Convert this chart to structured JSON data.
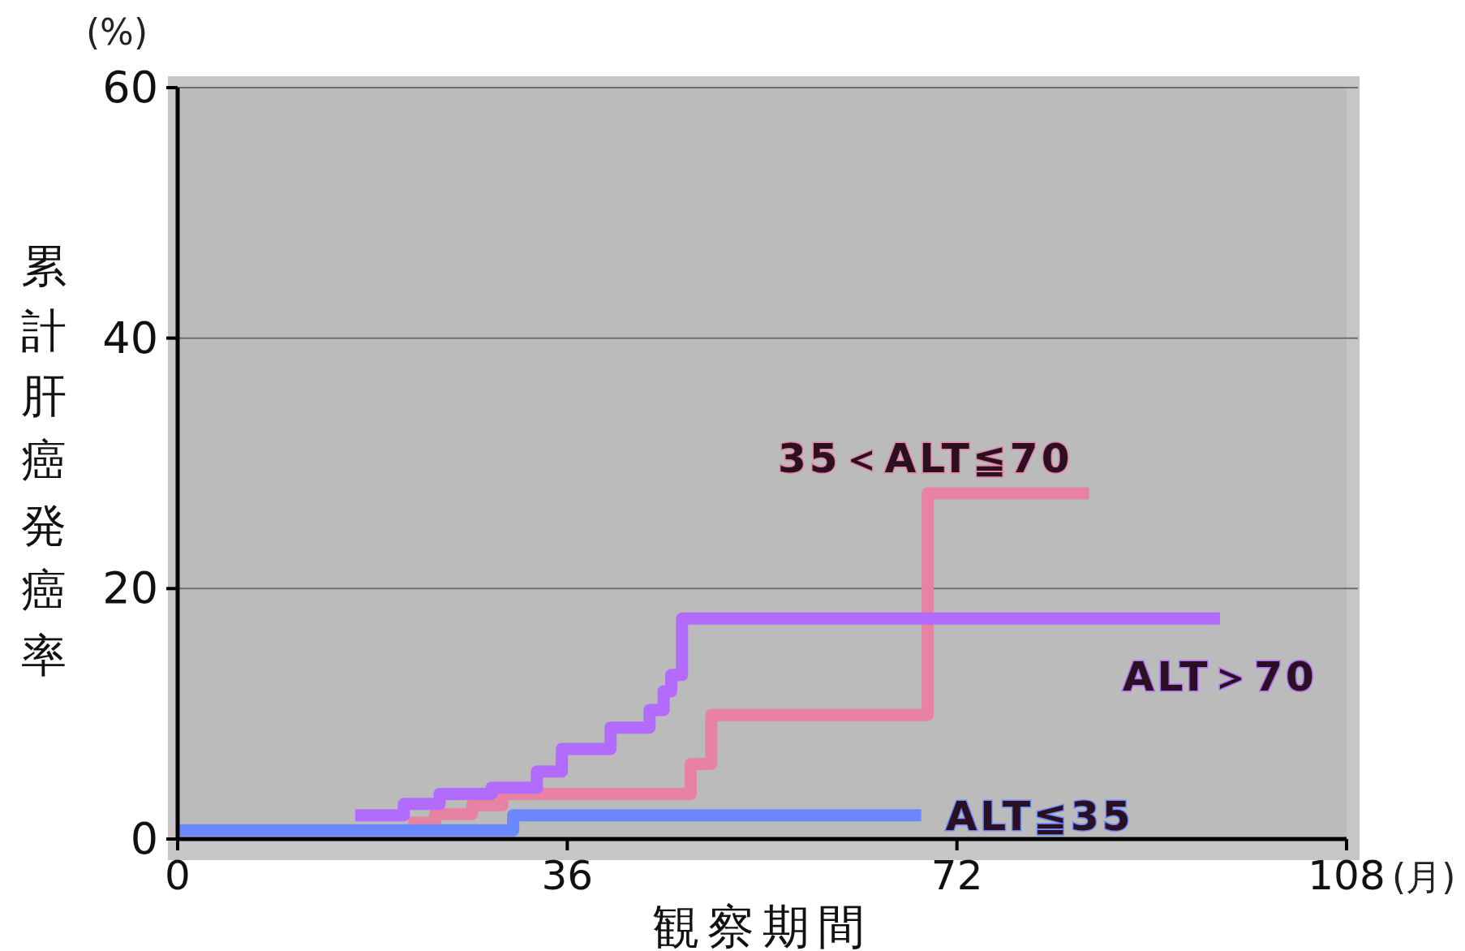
{
  "chart_data": {
    "type": "step",
    "xlabel": "観察期間",
    "ylabel": "累計肝癌発癌率",
    "annotations": [
      "(%)",
      "(月)"
    ],
    "xlim": [
      0,
      108
    ],
    "ylim": [
      0,
      60
    ],
    "xticks": [
      0,
      36,
      72,
      108
    ],
    "yticks": [
      0,
      20,
      40,
      60
    ],
    "grid": "y",
    "line_style": "solid",
    "marker": "none",
    "series": [
      {
        "name": "35＜ALT≦70",
        "color": "#e882a2",
        "x": [
          21.3,
          23.8,
          27.2,
          30,
          47.4,
          49.3,
          69.3,
          84.2
        ],
        "values": [
          1.3,
          2.0,
          2.7,
          3.6,
          6.0,
          9.9,
          27.6,
          27.6
        ]
      },
      {
        "name": "ALT＞70",
        "color": "#b36bfe",
        "x": [
          16.4,
          20.9,
          24.2,
          29,
          33.2,
          35.5,
          40,
          43.6,
          44.9,
          45.6,
          46.6,
          96.3
        ],
        "values": [
          1.9,
          2.8,
          3.6,
          4.1,
          5.4,
          7.2,
          8.9,
          10.3,
          11.8,
          13.1,
          17.6,
          17.6
        ]
      },
      {
        "name": "ALT≦35",
        "color": "#6b88fe",
        "x": [
          0,
          31,
          68.7
        ],
        "values": [
          0.7,
          1.9,
          1.9
        ]
      }
    ]
  }
}
